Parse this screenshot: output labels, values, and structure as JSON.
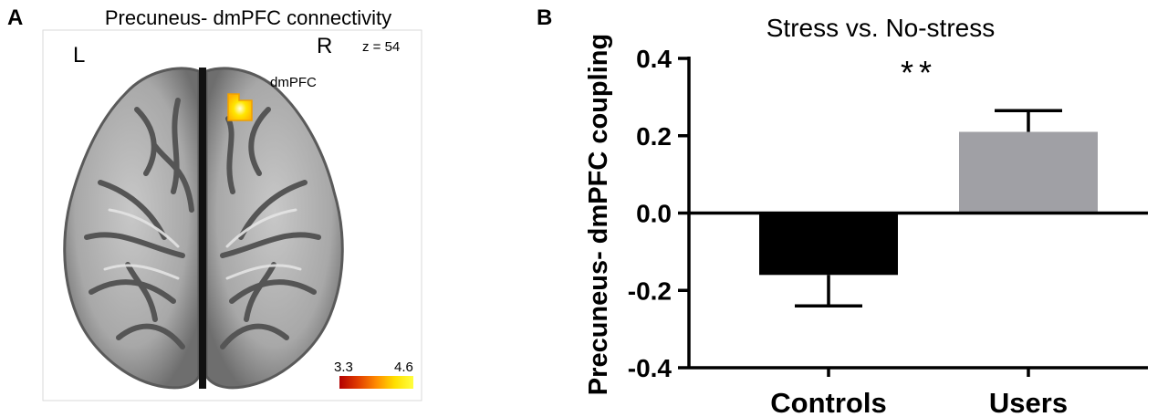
{
  "panel_a": {
    "panel_letter": "A",
    "title": "Precuneus- dmPFC connectivity",
    "left_label": "L",
    "right_label": "R",
    "slice_label": "z = 54",
    "region_label": "dmPFC",
    "colorbar_min": "3.3",
    "colorbar_max": "4.6",
    "colorbar_colors": [
      "#b30000",
      "#e03c00",
      "#ff8c00",
      "#ffe000",
      "#ffff40"
    ],
    "blob_color": "#ffd400"
  },
  "chart_data": {
    "type": "bar",
    "panel_letter": "B",
    "title": "Stress vs. No-stress",
    "ylabel": "Precuneus- dmPFC coupling",
    "xlabel": "",
    "categories": [
      "Controls",
      "Users"
    ],
    "values": [
      -0.16,
      0.21
    ],
    "errors": [
      0.08,
      0.055
    ],
    "colors": [
      "#000000",
      "#a0a0a5"
    ],
    "ylim": [
      -0.4,
      0.4
    ],
    "yticks": [
      "0.4",
      "0.2",
      "0.0",
      "-0.2",
      "-0.4"
    ],
    "significance": "**",
    "grid": false
  }
}
